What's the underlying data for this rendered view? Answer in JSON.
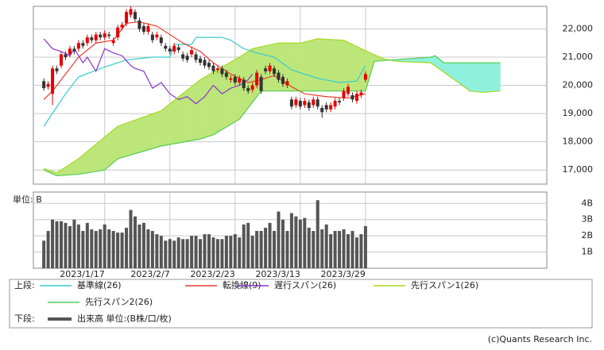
{
  "chart_data": [
    {
      "type": "candlestick",
      "x": [
        0,
        1,
        2,
        3,
        4,
        5,
        6,
        7,
        8,
        9,
        10,
        11,
        12,
        13,
        14,
        15,
        16,
        17,
        18,
        19,
        20,
        21,
        22,
        23,
        24,
        25,
        26,
        27,
        28,
        29,
        30,
        31,
        32,
        33,
        34,
        35,
        36,
        37,
        38,
        39,
        40,
        41,
        42,
        43,
        44,
        45,
        46,
        47,
        48,
        49,
        50,
        51,
        52,
        53,
        54,
        55,
        56,
        57,
        58,
        59,
        60,
        61,
        62,
        63,
        64,
        65,
        66,
        67,
        68,
        69,
        70,
        71,
        72,
        73,
        74
      ],
      "open": [
        20150,
        19950,
        19700,
        20600,
        20700,
        21100,
        21100,
        21300,
        21300,
        21500,
        21500,
        21700,
        21600,
        21800,
        21700,
        21800,
        21500,
        21700,
        22050,
        22200,
        22500,
        22600,
        22300,
        22100,
        21900,
        21800,
        21700,
        21700,
        21400,
        21300,
        21200,
        21350,
        21100,
        21050,
        21100,
        21100,
        20950,
        20900,
        20800,
        20700,
        20550,
        20600,
        20450,
        20200,
        20300,
        20100,
        20200,
        19900,
        19850,
        20000,
        20300,
        20600,
        20500,
        20600,
        20450,
        20300,
        20000,
        19500,
        19300,
        19450,
        19300,
        19400,
        19300,
        19500,
        19200,
        19300,
        19150,
        19250,
        19450,
        19550,
        19700,
        19650,
        19450,
        19650,
        20200
      ],
      "high": [
        20250,
        20150,
        20700,
        20700,
        21200,
        21200,
        21400,
        21400,
        21600,
        21600,
        21800,
        21800,
        21900,
        21900,
        21950,
        21900,
        21700,
        22150,
        22250,
        22700,
        22800,
        22700,
        22400,
        22200,
        22200,
        21900,
        21900,
        21800,
        21500,
        21400,
        21500,
        21450,
        21200,
        21150,
        21350,
        21200,
        21050,
        21000,
        20900,
        20800,
        20700,
        20700,
        20550,
        20350,
        20400,
        20350,
        20300,
        20000,
        20100,
        20550,
        20400,
        20700,
        20800,
        20700,
        20550,
        20400,
        20250,
        19600,
        19600,
        19550,
        19550,
        19500,
        19600,
        19600,
        19300,
        19400,
        19400,
        19550,
        19550,
        19900,
        20050,
        19750,
        19800,
        19850,
        20500
      ],
      "low": [
        19800,
        19850,
        19300,
        20400,
        20600,
        20900,
        21000,
        21100,
        21200,
        21300,
        21400,
        21500,
        21500,
        21600,
        21600,
        21650,
        21400,
        21600,
        21950,
        22100,
        22400,
        22250,
        21900,
        21800,
        21800,
        21500,
        21600,
        21400,
        21200,
        21100,
        21100,
        21150,
        20850,
        20800,
        21000,
        20800,
        20700,
        20600,
        20550,
        20400,
        20450,
        20300,
        20200,
        20100,
        20000,
        20000,
        19800,
        19700,
        19750,
        19900,
        19700,
        20400,
        20400,
        20300,
        20100,
        19950,
        19900,
        19150,
        19200,
        19150,
        19200,
        19100,
        19200,
        19150,
        18850,
        19050,
        19050,
        19150,
        19300,
        19450,
        19600,
        19400,
        19350,
        19550,
        20100
      ],
      "close": [
        19900,
        20050,
        20600,
        20500,
        21100,
        21000,
        21300,
        21200,
        21500,
        21400,
        21700,
        21600,
        21800,
        21700,
        21850,
        21750,
        21600,
        22050,
        22150,
        22600,
        22700,
        22350,
        22000,
        21900,
        22100,
        21600,
        21800,
        21500,
        21300,
        21200,
        21400,
        21250,
        20950,
        20900,
        21250,
        20900,
        20800,
        20700,
        20650,
        20500,
        20600,
        20400,
        20300,
        20250,
        20100,
        20250,
        19900,
        19800,
        20000,
        20450,
        19800,
        20500,
        20700,
        20400,
        20200,
        20050,
        20150,
        19250,
        19500,
        19250,
        19450,
        19200,
        19500,
        19250,
        19050,
        19150,
        19300,
        19450,
        19400,
        19800,
        19950,
        19500,
        19700,
        19750,
        20400
      ],
      "up_color": "#e60000",
      "down_color": "#333333",
      "series": [
        {
          "name": "基準線(26)",
          "color": "#33cccc",
          "x": [
            0,
            5,
            8,
            14,
            19,
            25,
            29,
            30,
            34,
            35,
            41,
            43,
            46,
            49,
            53,
            57,
            63,
            68,
            72,
            74
          ],
          "values": [
            18550,
            19700,
            20300,
            20650,
            20900,
            21000,
            21000,
            21450,
            21450,
            21700,
            21700,
            21600,
            21300,
            21150,
            21000,
            20550,
            20250,
            20100,
            20150,
            20700
          ]
        },
        {
          "name": "転換線(9)",
          "color": "#e83c2c",
          "x": [
            0,
            2,
            5,
            8,
            12,
            16,
            19,
            22,
            26,
            32,
            36,
            39,
            43,
            47,
            50,
            53,
            57,
            60,
            65,
            70,
            74
          ],
          "values": [
            19500,
            19800,
            20400,
            21000,
            21500,
            21600,
            22200,
            22250,
            22100,
            21500,
            21200,
            20800,
            20400,
            20100,
            20200,
            20350,
            19950,
            19700,
            19600,
            19550,
            19700
          ]
        },
        {
          "name": "遅行スパン(26)",
          "color": "#8833cc",
          "x": [
            0,
            2,
            4,
            6,
            7,
            9,
            10,
            12,
            14,
            16,
            18,
            20,
            21,
            23,
            25,
            27,
            29,
            31,
            33,
            35,
            37,
            39,
            41,
            43,
            45,
            47,
            48
          ],
          "values": [
            21650,
            21300,
            21200,
            21050,
            21300,
            20800,
            21000,
            20500,
            21300,
            21150,
            21050,
            20700,
            20600,
            20500,
            19900,
            20100,
            19700,
            19500,
            19600,
            19350,
            19600,
            20000,
            19700,
            19900,
            20000,
            20200,
            20400
          ]
        },
        {
          "name": "先行スパン1(26)",
          "color": "#a8d820",
          "x": [
            0,
            3,
            8,
            17,
            27,
            36,
            41,
            45,
            48,
            54,
            59,
            63,
            69,
            73,
            78,
            81,
            89,
            94,
            98,
            101,
            105
          ],
          "values": [
            17050,
            16900,
            17400,
            18550,
            19100,
            20200,
            20650,
            21000,
            21300,
            21500,
            21500,
            21650,
            21600,
            21300,
            20950,
            20850,
            20800,
            20250,
            19800,
            19750,
            19800
          ]
        },
        {
          "name": "先行スパン2(26)",
          "color": "#55cc55",
          "x": [
            0,
            3,
            8,
            14,
            17,
            27,
            36,
            39,
            45,
            48,
            50,
            74,
            76,
            80,
            89,
            90,
            92,
            105
          ],
          "values": [
            17000,
            16800,
            16850,
            17000,
            17400,
            17850,
            18100,
            18250,
            18800,
            19400,
            19800,
            19800,
            20850,
            20900,
            21000,
            21050,
            20800,
            20800
          ]
        }
      ],
      "cloud_colors": [
        "#bde67a",
        "#8ff0dc"
      ],
      "xlim": [
        -2.4,
        115.7
      ],
      "xticks": [
        {
          "value": 14,
          "label": "2023/1/17"
        },
        {
          "value": 29,
          "label": "2023/2/7"
        },
        {
          "value": 44,
          "label": "2023/2/23"
        },
        {
          "value": 59,
          "label": "2023/3/13"
        },
        {
          "value": 74,
          "label": "2023/3/29"
        }
      ],
      "ylim": [
        16500,
        22800
      ],
      "yticks": [
        {
          "value": 17000,
          "label": "17,000"
        },
        {
          "value": 18000,
          "label": "18,000"
        },
        {
          "value": 19000,
          "label": "19,000"
        },
        {
          "value": 20000,
          "label": "20,000"
        },
        {
          "value": 21000,
          "label": "21,000"
        },
        {
          "value": 22000,
          "label": "22,000"
        }
      ],
      "grid": true,
      "legend_label": "上段:"
    },
    {
      "type": "bar",
      "ylabel": "単位: B",
      "x": [
        0,
        1,
        2,
        3,
        4,
        5,
        6,
        7,
        8,
        9,
        10,
        11,
        12,
        13,
        14,
        15,
        16,
        17,
        18,
        19,
        20,
        21,
        22,
        23,
        24,
        25,
        26,
        27,
        28,
        29,
        30,
        31,
        32,
        33,
        34,
        35,
        36,
        37,
        38,
        39,
        40,
        41,
        42,
        43,
        44,
        45,
        46,
        47,
        48,
        49,
        50,
        51,
        52,
        53,
        54,
        55,
        56,
        57,
        58,
        59,
        60,
        61,
        62,
        63,
        64,
        65,
        66,
        67,
        68,
        69,
        70,
        71,
        72,
        73,
        74
      ],
      "series": [
        {
          "name": "出来高 単位:(B株/口/枚)",
          "color": "#555555",
          "values": [
            1.7,
            2.3,
            3.0,
            2.9,
            2.9,
            2.8,
            2.6,
            3.0,
            2.7,
            2.3,
            2.8,
            2.4,
            2.3,
            2.4,
            2.7,
            2.4,
            2.3,
            2.2,
            2.2,
            2.5,
            3.6,
            3.2,
            2.7,
            2.8,
            2.4,
            2.3,
            2.1,
            2.0,
            1.7,
            1.8,
            1.7,
            1.9,
            1.8,
            1.8,
            2.0,
            2.0,
            1.8,
            2.1,
            2.1,
            1.9,
            1.8,
            1.8,
            2.0,
            2.0,
            2.1,
            1.9,
            2.7,
            2.8,
            2.0,
            2.3,
            2.3,
            2.5,
            2.8,
            2.3,
            3.5,
            3.0,
            2.3,
            3.4,
            3.2,
            3.0,
            3.1,
            2.5,
            2.3,
            4.2,
            2.4,
            2.7,
            2.1,
            2.3,
            2.3,
            2.4,
            2.1,
            2.3,
            1.9,
            2.1,
            2.6
          ]
        }
      ],
      "xlim": [
        -2.4,
        115.7
      ],
      "xticks": [
        {
          "value": 14,
          "label": "2023/1/17"
        },
        {
          "value": 29,
          "label": "2023/2/7"
        },
        {
          "value": 44,
          "label": "2023/2/23"
        },
        {
          "value": 59,
          "label": "2023/3/13"
        },
        {
          "value": 74,
          "label": "2023/3/29"
        }
      ],
      "ylim": [
        0,
        4.7
      ],
      "yticks": [
        {
          "value": 1,
          "label": "1B"
        },
        {
          "value": 2,
          "label": "2B"
        },
        {
          "value": 3,
          "label": "3B"
        },
        {
          "value": 4,
          "label": "4B"
        }
      ],
      "grid": true,
      "legend_label": "下段:"
    }
  ],
  "footer": "(c)Quants Research Inc."
}
